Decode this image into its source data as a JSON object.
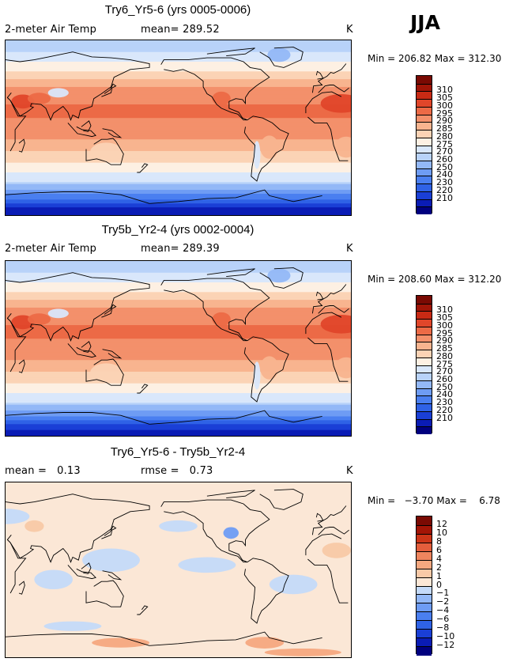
{
  "season": "JJA",
  "colors": {
    "warm_scale": [
      "#00007f",
      "#0a1cb5",
      "#1a3fd6",
      "#2f62e6",
      "#4a7ff0",
      "#6e9cf4",
      "#93b8f7",
      "#b8d2f9",
      "#d9e7fb",
      "#fdf0e3",
      "#fbd3b5",
      "#f8b48f",
      "#f3906b",
      "#ec6a46",
      "#e0462a",
      "#c82a14",
      "#a01507",
      "#7a0a03"
    ],
    "diff_scale": [
      "#00007f",
      "#0a1cb5",
      "#1a3fd6",
      "#2f62e6",
      "#4a7ff0",
      "#6e9cf4",
      "#93b8f7",
      "#c4daf9",
      "#fbe7d6",
      "#f8c9a7",
      "#f5a880",
      "#ef855e",
      "#e45e3c",
      "#cc3518",
      "#a31506",
      "#7a0a03"
    ],
    "land": "#000000"
  },
  "chart_data": [
    {
      "type": "heatmap",
      "title": "Try6_Yr5-6 (yrs 0005-0006)",
      "variable": "2-meter Air Temp",
      "stat_left_label": "mean=",
      "stat_left_value": "289.52",
      "units": "K",
      "min_label": "Min =",
      "min_value": "206.82",
      "max_label": "Max =",
      "max_value": "312.30",
      "colorbar_levels": [
        "310",
        "305",
        "300",
        "295",
        "290",
        "285",
        "280",
        "275",
        "270",
        "260",
        "250",
        "240",
        "230",
        "220",
        "210"
      ],
      "zonal_profile": [
        {
          "lat": 80,
          "value": 274
        },
        {
          "lat": 60,
          "value": 284
        },
        {
          "lat": 40,
          "value": 296
        },
        {
          "lat": 20,
          "value": 301
        },
        {
          "lat": 0,
          "value": 299
        },
        {
          "lat": -20,
          "value": 292
        },
        {
          "lat": -40,
          "value": 283
        },
        {
          "lat": -55,
          "value": 276
        },
        {
          "lat": -70,
          "value": 248
        },
        {
          "lat": -85,
          "value": 215
        }
      ]
    },
    {
      "type": "heatmap",
      "title": "Try5b_Yr2-4 (yrs 0002-0004)",
      "variable": "2-meter Air Temp",
      "stat_left_label": "mean=",
      "stat_left_value": "289.39",
      "units": "K",
      "min_label": "Min =",
      "min_value": "208.60",
      "max_label": "Max =",
      "max_value": "312.20",
      "colorbar_levels": [
        "310",
        "305",
        "300",
        "295",
        "290",
        "285",
        "280",
        "275",
        "270",
        "260",
        "250",
        "240",
        "230",
        "220",
        "210"
      ],
      "zonal_profile": [
        {
          "lat": 80,
          "value": 274
        },
        {
          "lat": 60,
          "value": 284
        },
        {
          "lat": 40,
          "value": 296
        },
        {
          "lat": 20,
          "value": 301
        },
        {
          "lat": 0,
          "value": 299
        },
        {
          "lat": -20,
          "value": 292
        },
        {
          "lat": -40,
          "value": 283
        },
        {
          "lat": -55,
          "value": 276
        },
        {
          "lat": -70,
          "value": 249
        },
        {
          "lat": -85,
          "value": 217
        }
      ]
    },
    {
      "type": "heatmap",
      "title": "Try6_Yr5-6 - Try5b_Yr2-4",
      "stat_left_label": "mean =",
      "stat_left_value": "0.13",
      "stat_right_label": "rmse =",
      "stat_right_value": "0.73",
      "units": "K",
      "min_label": "Min =",
      "min_value": "−3.70",
      "max_label": "Max =",
      "max_value": "6.78",
      "colorbar_levels": [
        "12",
        "10",
        "8",
        "6",
        "4",
        "2",
        "1",
        "0",
        "−1",
        "−2",
        "−4",
        "−6",
        "−8",
        "−10",
        "−12"
      ]
    }
  ]
}
